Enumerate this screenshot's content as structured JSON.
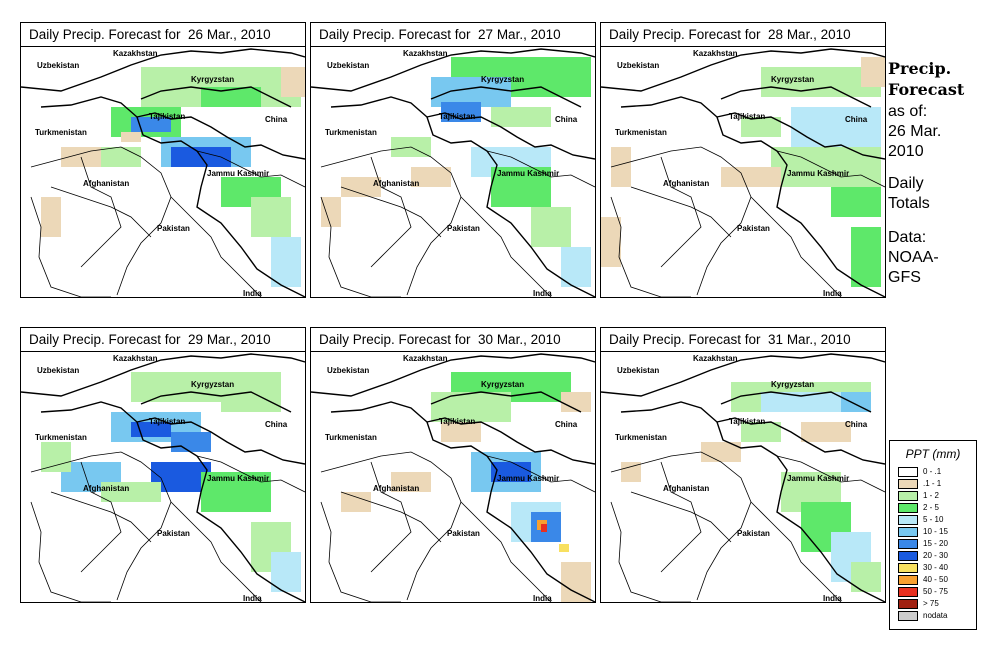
{
  "panels": [
    {
      "title": "Daily Precip. Forecast for  26 Mar., 2010"
    },
    {
      "title": "Daily Precip. Forecast for  27 Mar., 2010"
    },
    {
      "title": "Daily Precip. Forecast for  28 Mar., 2010"
    },
    {
      "title": "Daily Precip. Forecast for  29 Mar., 2010"
    },
    {
      "title": "Daily Precip. Forecast for  30 Mar., 2010"
    },
    {
      "title": "Daily Precip. Forecast for  31 Mar., 2010"
    }
  ],
  "map_labels": {
    "kazakhstan": "Kazakhstan",
    "uzbekistan": "Uzbekistan",
    "kyrgyzstan": "Kyrgyzstan",
    "tajikistan": "Tajikistan",
    "turkmenistan": "Turkmenistan",
    "china": "China",
    "afghanistan": "Afghanistan",
    "jammu_kashmir": "Jammu Kashmir",
    "pakistan": "Pakistan",
    "india": "India"
  },
  "side": {
    "heading1": "Precip.",
    "heading2": "Forecast",
    "asof1": "as of:",
    "asof2": "26 Mar.",
    "asof3": "2010",
    "daily1": "Daily",
    "daily2": "Totals",
    "data1": "Data:",
    "data2": "NOAA-",
    "data3": "GFS"
  },
  "legend": {
    "title": "PPT (mm)",
    "entries": [
      {
        "label": "0 - .1",
        "color": "#ffffff"
      },
      {
        "label": ".1 - 1",
        "color": "#ecd8b8"
      },
      {
        "label": "1 - 2",
        "color": "#b8f0a8"
      },
      {
        "label": "2 - 5",
        "color": "#5ee86a"
      },
      {
        "label": "5 - 10",
        "color": "#b8e8f8"
      },
      {
        "label": "10 - 15",
        "color": "#78c8f0"
      },
      {
        "label": "15 - 20",
        "color": "#3a88e8"
      },
      {
        "label": "20 - 30",
        "color": "#1a5ae0"
      },
      {
        "label": "30 - 40",
        "color": "#f8e060"
      },
      {
        "label": "40 - 50",
        "color": "#f8a030"
      },
      {
        "label": "50 - 75",
        "color": "#e83020"
      },
      {
        "label": "> 75",
        "color": "#a02010"
      },
      {
        "label": "nodata",
        "color": "#cccccc"
      }
    ]
  }
}
